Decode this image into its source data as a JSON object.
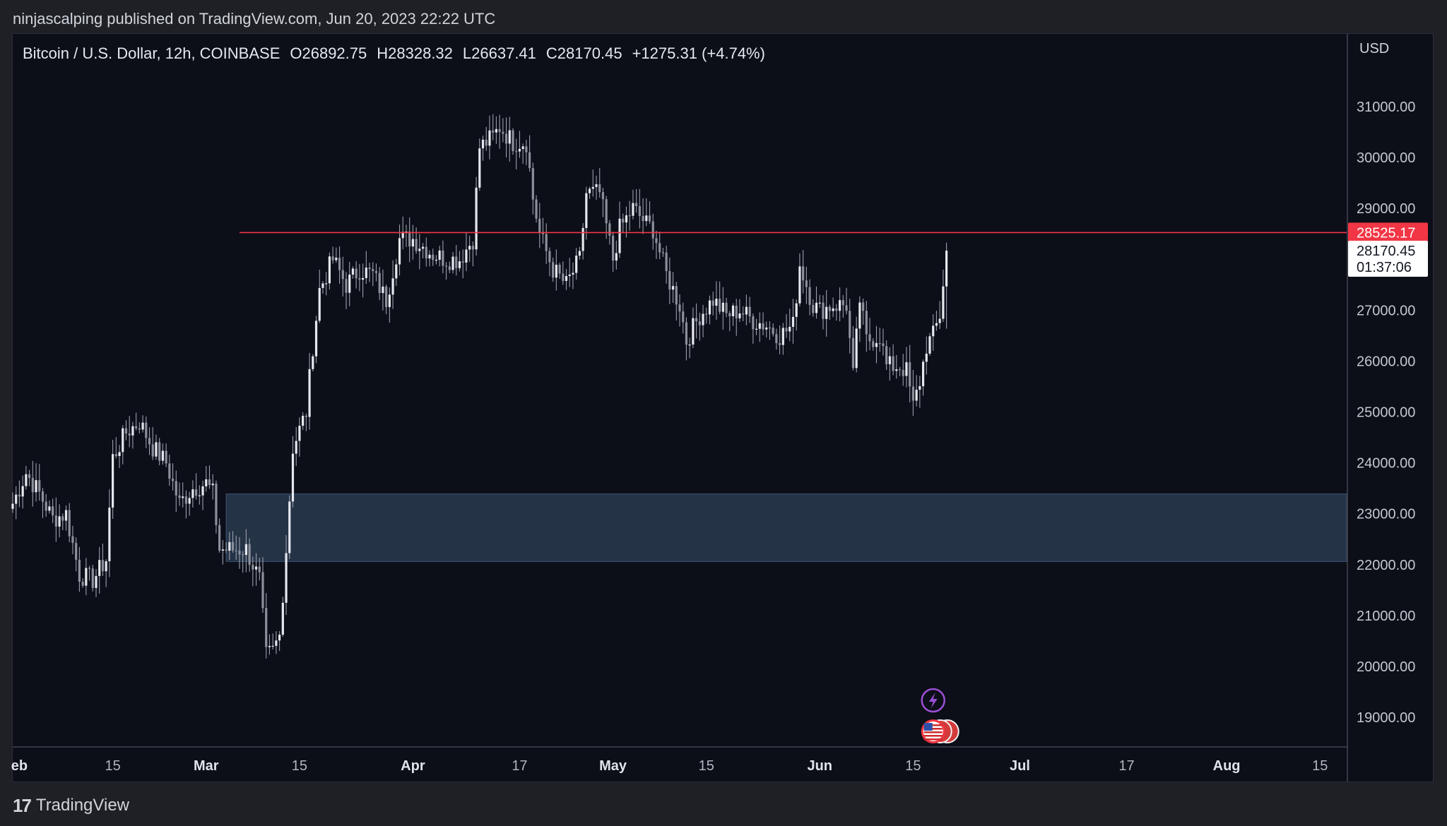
{
  "header": {
    "published_line": "ninjascalping published on TradingView.com, Jun 20, 2023 22:22 UTC"
  },
  "footer": {
    "brand_mark": "17",
    "brand_name": "TradingView"
  },
  "colors": {
    "background": "#0c0e18",
    "candle": "#e6e8ee",
    "resistance_line": "#f23645",
    "zone_fill": "#2a3950",
    "event_lightning": "#9c4fd6",
    "event_flag_ring": "#f23645"
  },
  "chart_data": {
    "type": "candlestick",
    "symbol_legend": {
      "symbol": "Bitcoin / U.S. Dollar, 12h, COINBASE",
      "open": "O26892.75",
      "high": "H28328.32",
      "low": "L26637.41",
      "close": "C28170.45",
      "change": "+1275.31 (+4.74%)"
    },
    "currency": "USD",
    "y_axis": {
      "range": [
        18300,
        32000
      ],
      "ticks": [
        "31000.00",
        "30000.00",
        "29000.00",
        "28000.00",
        "27000.00",
        "26000.00",
        "25000.00",
        "24000.00",
        "23000.00",
        "22000.00",
        "21000.00",
        "20000.00",
        "19000.00"
      ]
    },
    "x_axis": {
      "range": [
        "2023-01-31",
        "2023-08-19"
      ],
      "ticks": [
        {
          "label": "eb",
          "date": "2023-02-01"
        },
        {
          "label": "15",
          "date": "2023-02-15"
        },
        {
          "label": "Mar",
          "date": "2023-03-01"
        },
        {
          "label": "15",
          "date": "2023-03-15"
        },
        {
          "label": "Apr",
          "date": "2023-04-01"
        },
        {
          "label": "17",
          "date": "2023-04-17"
        },
        {
          "label": "May",
          "date": "2023-05-01"
        },
        {
          "label": "15",
          "date": "2023-05-15"
        },
        {
          "label": "Jun",
          "date": "2023-06-01"
        },
        {
          "label": "15",
          "date": "2023-06-15"
        },
        {
          "label": "Jul",
          "date": "2023-07-01"
        },
        {
          "label": "17",
          "date": "2023-07-17"
        },
        {
          "label": "Aug",
          "date": "2023-08-01"
        },
        {
          "label": "15",
          "date": "2023-08-15"
        }
      ]
    },
    "resistance_line": {
      "value": 28525.17,
      "label": "28525.17",
      "start": "2023-03-06"
    },
    "last_price": {
      "value": 28170.45,
      "label": "28170.45",
      "countdown": "01:37:06"
    },
    "zone": {
      "from": "2023-03-04",
      "low": 22060,
      "high": 23390
    },
    "events": [
      {
        "icon": "lightning-icon",
        "date": "2023-06-18"
      },
      {
        "icon": "us-flag-icon",
        "date": "2023-06-18"
      }
    ],
    "ohlc_anchors": [
      [
        "2023-01-31",
        23200
      ],
      [
        "2023-02-02",
        23800
      ],
      [
        "2023-02-04",
        23400
      ],
      [
        "2023-02-06",
        22900
      ],
      [
        "2023-02-08",
        23000
      ],
      [
        "2023-02-10",
        21800
      ],
      [
        "2023-02-12",
        21700
      ],
      [
        "2023-02-14",
        22100
      ],
      [
        "2023-02-15",
        24100
      ],
      [
        "2023-02-17",
        24600
      ],
      [
        "2023-02-19",
        24800
      ],
      [
        "2023-02-21",
        24300
      ],
      [
        "2023-02-23",
        24000
      ],
      [
        "2023-02-25",
        23200
      ],
      [
        "2023-02-27",
        23500
      ],
      [
        "2023-03-01",
        23600
      ],
      [
        "2023-03-02",
        23400
      ],
      [
        "2023-03-03",
        22300
      ],
      [
        "2023-03-07",
        22300
      ],
      [
        "2023-03-09",
        21700
      ],
      [
        "2023-03-10",
        20200
      ],
      [
        "2023-03-11",
        20300
      ],
      [
        "2023-03-12",
        20600
      ],
      [
        "2023-03-13",
        22300
      ],
      [
        "2023-03-14",
        24300
      ],
      [
        "2023-03-16",
        25000
      ],
      [
        "2023-03-17",
        26300
      ],
      [
        "2023-03-18",
        27400
      ],
      [
        "2023-03-20",
        28000
      ],
      [
        "2023-03-22",
        27500
      ],
      [
        "2023-03-24",
        27800
      ],
      [
        "2023-03-26",
        27700
      ],
      [
        "2023-03-28",
        27200
      ],
      [
        "2023-03-30",
        28400
      ],
      [
        "2023-04-01",
        28400
      ],
      [
        "2023-04-04",
        28100
      ],
      [
        "2023-04-06",
        28000
      ],
      [
        "2023-04-08",
        28000
      ],
      [
        "2023-04-10",
        28400
      ],
      [
        "2023-04-11",
        30200
      ],
      [
        "2023-04-13",
        30400
      ],
      [
        "2023-04-14",
        30600
      ],
      [
        "2023-04-16",
        30300
      ],
      [
        "2023-04-18",
        30300
      ],
      [
        "2023-04-19",
        29200
      ],
      [
        "2023-04-20",
        28500
      ],
      [
        "2023-04-22",
        27800
      ],
      [
        "2023-04-24",
        27500
      ],
      [
        "2023-04-26",
        28000
      ],
      [
        "2023-04-27",
        29300
      ],
      [
        "2023-04-29",
        29300
      ],
      [
        "2023-05-01",
        28000
      ],
      [
        "2023-05-02",
        28600
      ],
      [
        "2023-05-04",
        29000
      ],
      [
        "2023-05-06",
        28700
      ],
      [
        "2023-05-07",
        28600
      ],
      [
        "2023-05-09",
        27700
      ],
      [
        "2023-05-11",
        27100
      ],
      [
        "2023-05-12",
        26400
      ],
      [
        "2023-05-14",
        26900
      ],
      [
        "2023-05-16",
        27200
      ],
      [
        "2023-05-18",
        26900
      ],
      [
        "2023-05-20",
        27000
      ],
      [
        "2023-05-22",
        26800
      ],
      [
        "2023-05-24",
        26700
      ],
      [
        "2023-05-26",
        26500
      ],
      [
        "2023-05-28",
        26700
      ],
      [
        "2023-05-29",
        27900
      ],
      [
        "2023-05-31",
        27100
      ],
      [
        "2023-06-01",
        27000
      ],
      [
        "2023-06-03",
        27100
      ],
      [
        "2023-06-05",
        27100
      ],
      [
        "2023-06-06",
        25700
      ],
      [
        "2023-06-07",
        27200
      ],
      [
        "2023-06-08",
        26400
      ],
      [
        "2023-06-10",
        26500
      ],
      [
        "2023-06-11",
        25900
      ],
      [
        "2023-06-13",
        25900
      ],
      [
        "2023-06-14",
        25800
      ],
      [
        "2023-06-15",
        25100
      ],
      [
        "2023-06-16",
        25600
      ],
      [
        "2023-06-17",
        26300
      ],
      [
        "2023-06-18",
        26500
      ],
      [
        "2023-06-19",
        26900
      ],
      [
        "2023-06-20",
        28170
      ]
    ]
  }
}
